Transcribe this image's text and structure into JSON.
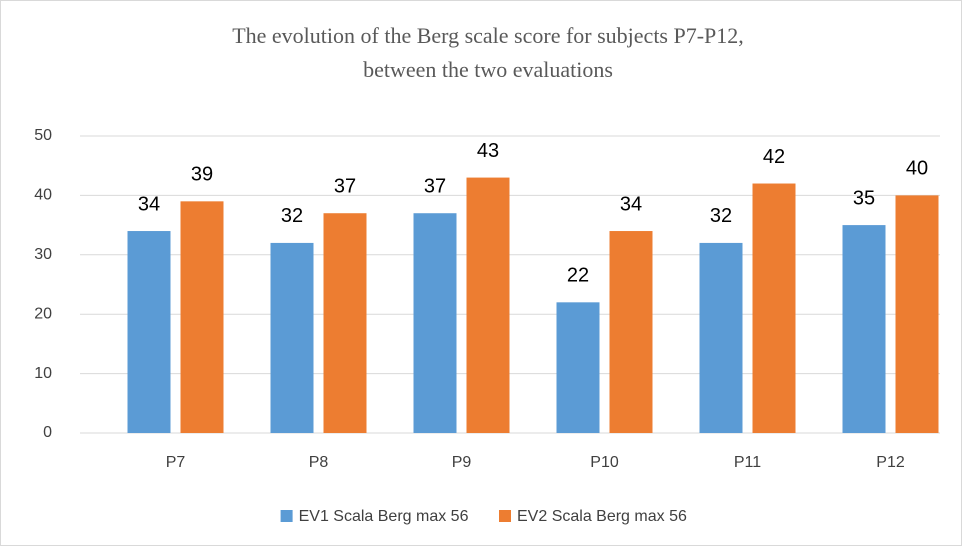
{
  "chart_data": {
    "type": "bar",
    "title": [
      "The evolution of the Berg scale score for subjects P7-P12,",
      "between the two evaluations"
    ],
    "categories": [
      "P7",
      "P8",
      "P9",
      "P10",
      "P11",
      "P12"
    ],
    "series": [
      {
        "name": "EV1 Scala Berg max 56",
        "color": "#5b9bd5",
        "values": [
          34,
          32,
          37,
          22,
          32,
          35
        ]
      },
      {
        "name": "EV2 Scala Berg max 56",
        "color": "#ed7d31",
        "values": [
          39,
          37,
          43,
          34,
          42,
          40
        ]
      }
    ],
    "ylim": [
      0,
      50
    ],
    "yticks": [
      0,
      10,
      20,
      30,
      40,
      50
    ],
    "grid": true,
    "legend": "bottom"
  }
}
